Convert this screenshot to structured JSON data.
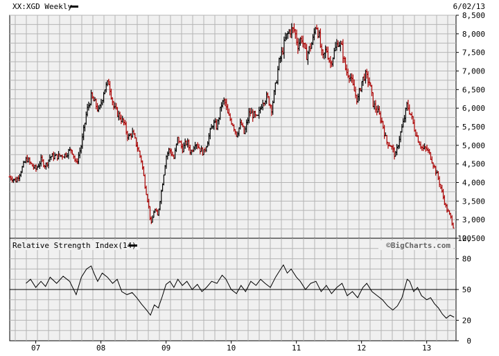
{
  "chart_data": [
    {
      "type": "candlestick",
      "title": "XX:XGD Weekly",
      "date_label": "6/02/13",
      "watermark": "©BigCharts.com",
      "ylim": [
        2500,
        8500
      ],
      "y_ticks": [
        2500,
        3000,
        3500,
        4000,
        4500,
        5000,
        5500,
        6000,
        6500,
        7000,
        7500,
        8000,
        8500
      ],
      "y_tick_labels": [
        "2,500",
        "3,000",
        "3,500",
        "4,000",
        "4,500",
        "5,000",
        "5,500",
        "6,000",
        "6,500",
        "7,000",
        "7,500",
        "8,000",
        "8,500"
      ],
      "grid": true,
      "colors": {
        "up": "#000000",
        "down": "#aa0000"
      },
      "x_ticks": [
        {
          "label": "07",
          "t": 2007.0
        },
        {
          "label": "08",
          "t": 2008.0
        },
        {
          "label": "09",
          "t": 2009.0
        },
        {
          "label": "10",
          "t": 2010.0
        },
        {
          "label": "11",
          "t": 2011.0
        },
        {
          "label": "12",
          "t": 2012.0
        },
        {
          "label": "13",
          "t": 2013.0
        }
      ],
      "x_range": [
        2006.6,
        2013.45
      ],
      "closes": [
        {
          "t": 2006.6,
          "v": 4150
        },
        {
          "t": 2006.7,
          "v": 4050
        },
        {
          "t": 2006.78,
          "v": 4350
        },
        {
          "t": 2006.86,
          "v": 4650
        },
        {
          "t": 2006.92,
          "v": 4500
        },
        {
          "t": 2007.0,
          "v": 4350
        },
        {
          "t": 2007.08,
          "v": 4600
        },
        {
          "t": 2007.15,
          "v": 4450
        },
        {
          "t": 2007.22,
          "v": 4700
        },
        {
          "t": 2007.32,
          "v": 4700
        },
        {
          "t": 2007.45,
          "v": 4750
        },
        {
          "t": 2007.55,
          "v": 4900
        },
        {
          "t": 2007.62,
          "v": 4500
        },
        {
          "t": 2007.7,
          "v": 5000
        },
        {
          "t": 2007.78,
          "v": 5900
        },
        {
          "t": 2007.85,
          "v": 6300
        },
        {
          "t": 2007.92,
          "v": 6100
        },
        {
          "t": 2007.97,
          "v": 5900
        },
        {
          "t": 2008.05,
          "v": 6500
        },
        {
          "t": 2008.12,
          "v": 6700
        },
        {
          "t": 2008.2,
          "v": 6000
        },
        {
          "t": 2008.28,
          "v": 5800
        },
        {
          "t": 2008.35,
          "v": 5600
        },
        {
          "t": 2008.42,
          "v": 5200
        },
        {
          "t": 2008.48,
          "v": 5350
        },
        {
          "t": 2008.55,
          "v": 5000
        },
        {
          "t": 2008.62,
          "v": 4600
        },
        {
          "t": 2008.68,
          "v": 3900
        },
        {
          "t": 2008.73,
          "v": 3400
        },
        {
          "t": 2008.77,
          "v": 2850
        },
        {
          "t": 2008.82,
          "v": 3300
        },
        {
          "t": 2008.87,
          "v": 3100
        },
        {
          "t": 2008.93,
          "v": 3800
        },
        {
          "t": 2009.0,
          "v": 4700
        },
        {
          "t": 2009.05,
          "v": 4900
        },
        {
          "t": 2009.12,
          "v": 4650
        },
        {
          "t": 2009.18,
          "v": 5200
        },
        {
          "t": 2009.25,
          "v": 4900
        },
        {
          "t": 2009.32,
          "v": 5100
        },
        {
          "t": 2009.38,
          "v": 4800
        },
        {
          "t": 2009.45,
          "v": 5100
        },
        {
          "t": 2009.52,
          "v": 4900
        },
        {
          "t": 2009.58,
          "v": 4800
        },
        {
          "t": 2009.65,
          "v": 5200
        },
        {
          "t": 2009.72,
          "v": 5600
        },
        {
          "t": 2009.78,
          "v": 5500
        },
        {
          "t": 2009.85,
          "v": 6100
        },
        {
          "t": 2009.9,
          "v": 6200
        },
        {
          "t": 2009.95,
          "v": 5800
        },
        {
          "t": 2010.02,
          "v": 5600
        },
        {
          "t": 2010.08,
          "v": 5300
        },
        {
          "t": 2010.15,
          "v": 5600
        },
        {
          "t": 2010.2,
          "v": 5300
        },
        {
          "t": 2010.28,
          "v": 5900
        },
        {
          "t": 2010.35,
          "v": 5800
        },
        {
          "t": 2010.4,
          "v": 5700
        },
        {
          "t": 2010.48,
          "v": 6200
        },
        {
          "t": 2010.55,
          "v": 6300
        },
        {
          "t": 2010.62,
          "v": 6000
        },
        {
          "t": 2010.68,
          "v": 6600
        },
        {
          "t": 2010.73,
          "v": 7200
        },
        {
          "t": 2010.78,
          "v": 7500
        },
        {
          "t": 2010.84,
          "v": 7900
        },
        {
          "t": 2010.9,
          "v": 8100
        },
        {
          "t": 2010.97,
          "v": 8100
        },
        {
          "t": 2011.02,
          "v": 7700
        },
        {
          "t": 2011.08,
          "v": 7900
        },
        {
          "t": 2011.15,
          "v": 7400
        },
        {
          "t": 2011.2,
          "v": 7600
        },
        {
          "t": 2011.25,
          "v": 7800
        },
        {
          "t": 2011.3,
          "v": 8300
        },
        {
          "t": 2011.35,
          "v": 7900
        },
        {
          "t": 2011.4,
          "v": 7300
        },
        {
          "t": 2011.46,
          "v": 7600
        },
        {
          "t": 2011.52,
          "v": 7200
        },
        {
          "t": 2011.58,
          "v": 7500
        },
        {
          "t": 2011.64,
          "v": 7800
        },
        {
          "t": 2011.7,
          "v": 7600
        },
        {
          "t": 2011.76,
          "v": 7000
        },
        {
          "t": 2011.82,
          "v": 6900
        },
        {
          "t": 2011.88,
          "v": 6500
        },
        {
          "t": 2011.94,
          "v": 6200
        },
        {
          "t": 2012.0,
          "v": 6700
        },
        {
          "t": 2012.05,
          "v": 6900
        },
        {
          "t": 2012.12,
          "v": 6700
        },
        {
          "t": 2012.18,
          "v": 6100
        },
        {
          "t": 2012.25,
          "v": 5900
        },
        {
          "t": 2012.32,
          "v": 5600
        },
        {
          "t": 2012.38,
          "v": 5100
        },
        {
          "t": 2012.45,
          "v": 5000
        },
        {
          "t": 2012.52,
          "v": 4700
        },
        {
          "t": 2012.58,
          "v": 5200
        },
        {
          "t": 2012.64,
          "v": 5600
        },
        {
          "t": 2012.7,
          "v": 6100
        },
        {
          "t": 2012.76,
          "v": 5800
        },
        {
          "t": 2012.82,
          "v": 5400
        },
        {
          "t": 2012.88,
          "v": 5100
        },
        {
          "t": 2012.94,
          "v": 4900
        },
        {
          "t": 2013.0,
          "v": 4900
        },
        {
          "t": 2013.06,
          "v": 4700
        },
        {
          "t": 2013.12,
          "v": 4400
        },
        {
          "t": 2013.18,
          "v": 4100
        },
        {
          "t": 2013.24,
          "v": 3700
        },
        {
          "t": 2013.3,
          "v": 3300
        },
        {
          "t": 2013.36,
          "v": 3100
        },
        {
          "t": 2013.42,
          "v": 2750
        }
      ]
    },
    {
      "type": "line",
      "title": "Relative Strength Index(14)",
      "ylim": [
        0,
        100
      ],
      "y_ticks": [
        0,
        20,
        50,
        80,
        100
      ],
      "reference_lines": [
        50
      ],
      "grid": true,
      "series_color": "#000000",
      "x_range": [
        2006.6,
        2013.45
      ],
      "values": [
        {
          "t": 2006.85,
          "v": 56
        },
        {
          "t": 2006.92,
          "v": 60
        },
        {
          "t": 2007.0,
          "v": 52
        },
        {
          "t": 2007.08,
          "v": 58
        },
        {
          "t": 2007.15,
          "v": 53
        },
        {
          "t": 2007.22,
          "v": 62
        },
        {
          "t": 2007.32,
          "v": 56
        },
        {
          "t": 2007.42,
          "v": 63
        },
        {
          "t": 2007.52,
          "v": 58
        },
        {
          "t": 2007.62,
          "v": 45
        },
        {
          "t": 2007.7,
          "v": 62
        },
        {
          "t": 2007.78,
          "v": 70
        },
        {
          "t": 2007.85,
          "v": 73
        },
        {
          "t": 2007.9,
          "v": 65
        },
        {
          "t": 2007.95,
          "v": 58
        },
        {
          "t": 2008.02,
          "v": 66
        },
        {
          "t": 2008.1,
          "v": 62
        },
        {
          "t": 2008.18,
          "v": 56
        },
        {
          "t": 2008.25,
          "v": 60
        },
        {
          "t": 2008.32,
          "v": 48
        },
        {
          "t": 2008.4,
          "v": 45
        },
        {
          "t": 2008.48,
          "v": 47
        },
        {
          "t": 2008.55,
          "v": 42
        },
        {
          "t": 2008.62,
          "v": 36
        },
        {
          "t": 2008.7,
          "v": 30
        },
        {
          "t": 2008.76,
          "v": 25
        },
        {
          "t": 2008.82,
          "v": 35
        },
        {
          "t": 2008.88,
          "v": 32
        },
        {
          "t": 2008.94,
          "v": 43
        },
        {
          "t": 2009.0,
          "v": 55
        },
        {
          "t": 2009.06,
          "v": 58
        },
        {
          "t": 2009.12,
          "v": 52
        },
        {
          "t": 2009.18,
          "v": 60
        },
        {
          "t": 2009.25,
          "v": 54
        },
        {
          "t": 2009.32,
          "v": 58
        },
        {
          "t": 2009.4,
          "v": 50
        },
        {
          "t": 2009.48,
          "v": 55
        },
        {
          "t": 2009.55,
          "v": 48
        },
        {
          "t": 2009.62,
          "v": 52
        },
        {
          "t": 2009.7,
          "v": 58
        },
        {
          "t": 2009.78,
          "v": 56
        },
        {
          "t": 2009.86,
          "v": 64
        },
        {
          "t": 2009.92,
          "v": 60
        },
        {
          "t": 2010.0,
          "v": 50
        },
        {
          "t": 2010.08,
          "v": 46
        },
        {
          "t": 2010.15,
          "v": 54
        },
        {
          "t": 2010.22,
          "v": 48
        },
        {
          "t": 2010.3,
          "v": 58
        },
        {
          "t": 2010.38,
          "v": 54
        },
        {
          "t": 2010.45,
          "v": 60
        },
        {
          "t": 2010.52,
          "v": 56
        },
        {
          "t": 2010.6,
          "v": 52
        },
        {
          "t": 2010.68,
          "v": 62
        },
        {
          "t": 2010.74,
          "v": 68
        },
        {
          "t": 2010.8,
          "v": 74
        },
        {
          "t": 2010.86,
          "v": 66
        },
        {
          "t": 2010.92,
          "v": 70
        },
        {
          "t": 2011.0,
          "v": 62
        },
        {
          "t": 2011.06,
          "v": 58
        },
        {
          "t": 2011.14,
          "v": 50
        },
        {
          "t": 2011.22,
          "v": 56
        },
        {
          "t": 2011.3,
          "v": 58
        },
        {
          "t": 2011.38,
          "v": 48
        },
        {
          "t": 2011.46,
          "v": 54
        },
        {
          "t": 2011.54,
          "v": 46
        },
        {
          "t": 2011.62,
          "v": 52
        },
        {
          "t": 2011.7,
          "v": 56
        },
        {
          "t": 2011.78,
          "v": 44
        },
        {
          "t": 2011.86,
          "v": 48
        },
        {
          "t": 2011.94,
          "v": 42
        },
        {
          "t": 2012.02,
          "v": 52
        },
        {
          "t": 2012.08,
          "v": 56
        },
        {
          "t": 2012.16,
          "v": 48
        },
        {
          "t": 2012.24,
          "v": 44
        },
        {
          "t": 2012.32,
          "v": 40
        },
        {
          "t": 2012.4,
          "v": 34
        },
        {
          "t": 2012.48,
          "v": 30
        },
        {
          "t": 2012.55,
          "v": 34
        },
        {
          "t": 2012.62,
          "v": 42
        },
        {
          "t": 2012.7,
          "v": 60
        },
        {
          "t": 2012.74,
          "v": 58
        },
        {
          "t": 2012.8,
          "v": 48
        },
        {
          "t": 2012.86,
          "v": 52
        },
        {
          "t": 2012.92,
          "v": 44
        },
        {
          "t": 2013.0,
          "v": 40
        },
        {
          "t": 2013.06,
          "v": 42
        },
        {
          "t": 2013.12,
          "v": 36
        },
        {
          "t": 2013.18,
          "v": 32
        },
        {
          "t": 2013.24,
          "v": 26
        },
        {
          "t": 2013.3,
          "v": 22
        },
        {
          "t": 2013.36,
          "v": 25
        },
        {
          "t": 2013.42,
          "v": 23
        }
      ]
    }
  ]
}
